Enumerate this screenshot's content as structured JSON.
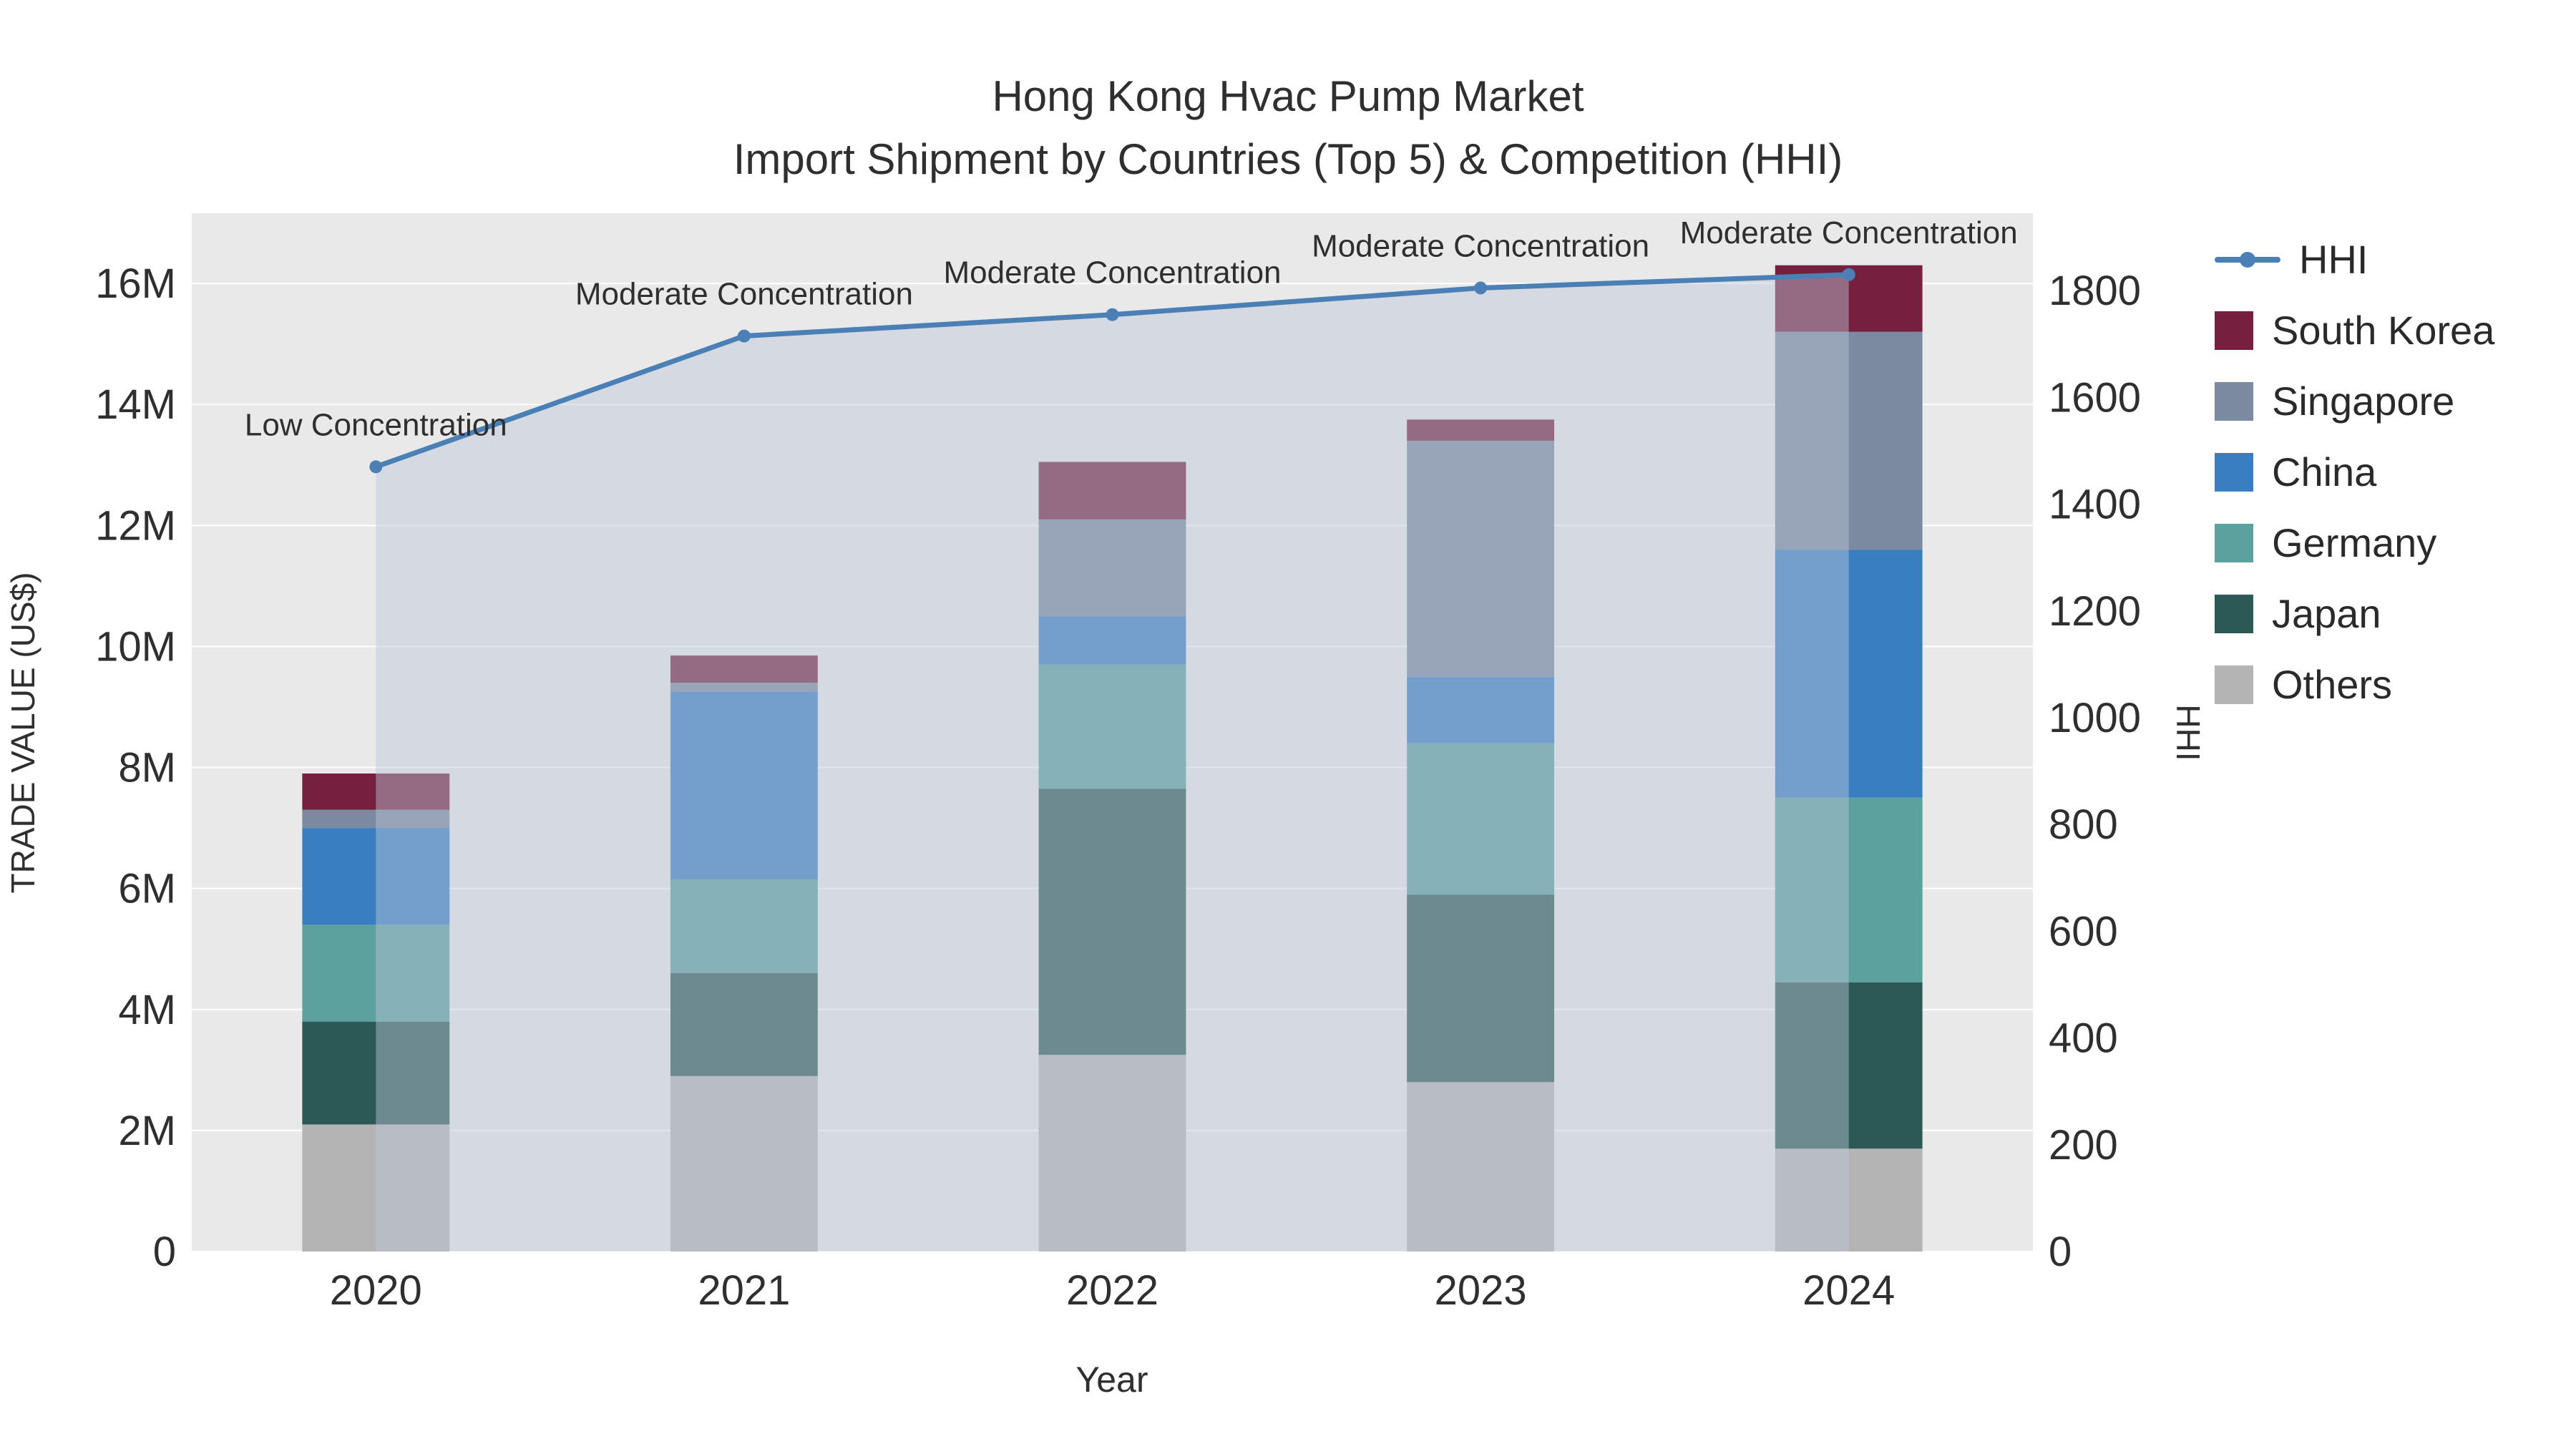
{
  "chart_data": {
    "type": "combo_stacked_bar_line",
    "title_line1": "Hong Kong Hvac Pump Market",
    "title_line2": "Import Shipment by Countries (Top 5) & Competition (HHI)",
    "xlabel": "Year",
    "ylabel_left": "TRADE VALUE (US$)",
    "ylabel_right": "HHI",
    "categories": [
      "2020",
      "2021",
      "2022",
      "2023",
      "2024"
    ],
    "bar_series": [
      {
        "name": "Others",
        "color": "#b4b4b4",
        "values": [
          2100000,
          2900000,
          3250000,
          2800000,
          1700000
        ]
      },
      {
        "name": "Japan",
        "color": "#2b5a56",
        "values": [
          1700000,
          1700000,
          4400000,
          3100000,
          2750000
        ]
      },
      {
        "name": "Germany",
        "color": "#5ca19e",
        "values": [
          1600000,
          1550000,
          2050000,
          2500000,
          3050000
        ]
      },
      {
        "name": "China",
        "color": "#3a7ec2",
        "values": [
          1600000,
          3100000,
          800000,
          1100000,
          4100000
        ]
      },
      {
        "name": "Singapore",
        "color": "#7b8aa0",
        "values": [
          300000,
          150000,
          1600000,
          3900000,
          3600000
        ]
      },
      {
        "name": "South Korea",
        "color": "#75203f",
        "values": [
          600000,
          450000,
          950000,
          350000,
          1100000
        ]
      }
    ],
    "line_series": {
      "name": "HHI",
      "color": "#4a80b5",
      "fill_color": "#bcc5d6",
      "values": [
        1470,
        1715,
        1755,
        1805,
        1830
      ]
    },
    "annotations": [
      "Low Concentration",
      "Moderate Concentration",
      "Moderate Concentration",
      "Moderate Concentration",
      "Moderate Concentration"
    ],
    "left_axis": {
      "tick_labels": [
        "0",
        "2M",
        "4M",
        "6M",
        "8M",
        "10M",
        "12M",
        "14M",
        "16M"
      ],
      "tick_values": [
        0,
        2000000,
        4000000,
        6000000,
        8000000,
        10000000,
        12000000,
        14000000,
        16000000
      ],
      "max": 17160000
    },
    "right_axis": {
      "ticks": [
        0,
        200,
        400,
        600,
        800,
        1000,
        1200,
        1400,
        1600,
        1800
      ],
      "max": 1945
    },
    "colors": {
      "plot_bg": "#e9e9e9",
      "grid": "#ffffff"
    },
    "legend_position": "right",
    "grid": true
  }
}
